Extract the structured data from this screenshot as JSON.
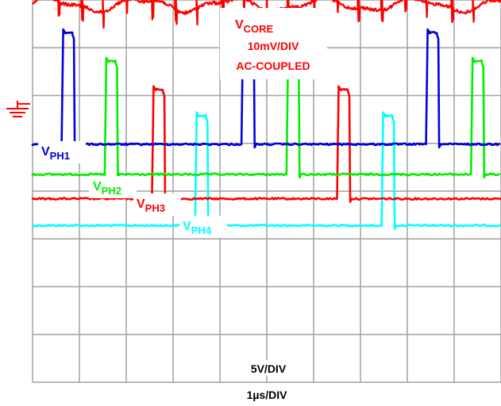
{
  "chart_data": {
    "type": "line",
    "title": "",
    "xlabel": "1µs/DIV",
    "ylabel": "",
    "x_unit": "µs",
    "x_per_div": 1,
    "x_divisions": 10,
    "y_divisions": 8,
    "grid": true,
    "colors": {
      "grid": "#a0a0a0",
      "core": "#ff0000",
      "ph1": "#0000dd",
      "ph2": "#00ee00",
      "ph3": "#ff0000",
      "ph4": "#00ffff"
    },
    "annotations": {
      "core_main": "V",
      "core_sub": "CORE",
      "core_scale": "10mV/DIV",
      "core_coupling": "AC-COUPLED",
      "ph1_main": "V",
      "ph1_sub": "PH1",
      "ph2_main": "V",
      "ph2_sub": "PH2",
      "ph3_main": "V",
      "ph3_sub": "PH3",
      "ph4_main": "V",
      "ph4_sub": "PH4",
      "phase_scale": "5V/DIV"
    },
    "ground_marker": "ground-symbol",
    "series": [
      {
        "key": "ph1",
        "baseline_div": 4.98,
        "high_div": 7.32,
        "pulses": [
          [
            0.62,
            0.9
          ],
          [
            4.46,
            4.74
          ],
          [
            8.4,
            8.68
          ]
        ]
      },
      {
        "key": "ph2",
        "baseline_div": 4.35,
        "high_div": 6.72,
        "pulses": [
          [
            1.54,
            1.82
          ],
          [
            5.42,
            5.7
          ],
          [
            9.36,
            9.64
          ]
        ]
      },
      {
        "key": "ph3",
        "baseline_div": 3.84,
        "high_div": 6.13,
        "pulses": [
          [
            2.55,
            2.83
          ],
          [
            6.5,
            6.78
          ]
        ]
      },
      {
        "key": "ph4",
        "baseline_div": 3.28,
        "high_div": 5.58,
        "pulses": [
          [
            3.47,
            3.75
          ],
          [
            7.45,
            7.73
          ]
        ]
      }
    ],
    "core_trace": {
      "center_div": 7.9,
      "ripple_amp_div": 0.12,
      "spike_amp_div": 0.3,
      "spikes_at": [
        0.55,
        1.05,
        1.5,
        2.0,
        2.55,
        3.05,
        3.5,
        4.05,
        4.5,
        5.0,
        5.45,
        6.0,
        6.5,
        6.95,
        7.45,
        7.95,
        8.4,
        8.95,
        9.4
      ]
    }
  }
}
